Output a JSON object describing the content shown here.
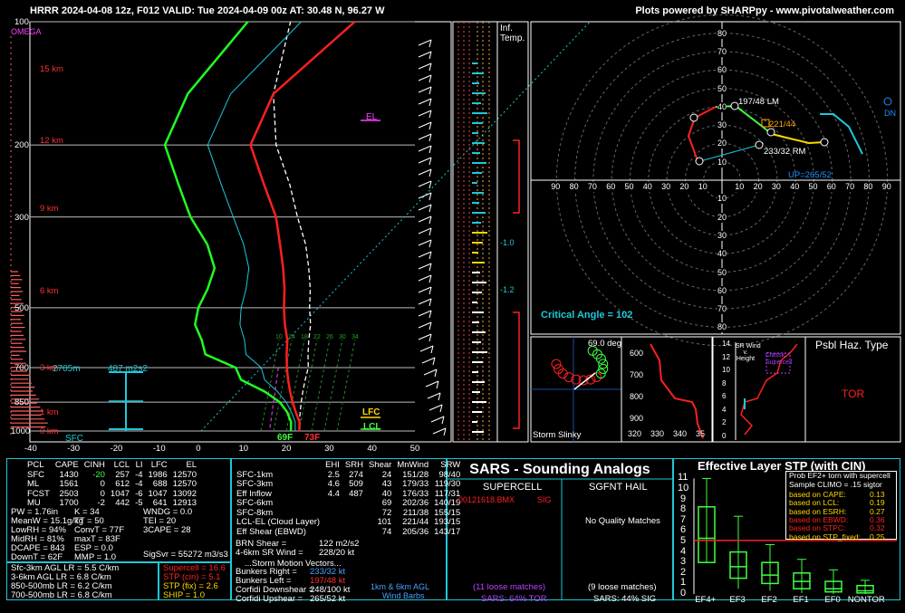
{
  "header": {
    "title": "HRRR 2024-04-08 12z, F012  VALID: Tue 2024-04-09 00z  AT: 30.48 N, 96.27 W",
    "credit": "Plots powered by SHARPpy - www.pivotalweather.com"
  },
  "skewt": {
    "omega_label": "OMEGA",
    "pressure_ticks": [
      "100",
      "200",
      "300",
      "500",
      "700",
      "850",
      "1000"
    ],
    "temp_ticks": [
      "-40",
      "-30",
      "-20",
      "-10",
      "0",
      "10",
      "20",
      "30",
      "40",
      "50"
    ],
    "height_labels": [
      "15 km",
      "12 km",
      "9 km",
      "6 km",
      "3 km",
      "1 km",
      "0 km"
    ],
    "el_label": "EL",
    "lfc_label": "LFC",
    "lcl_label": "LCL",
    "helicity_depth": "2705m",
    "helicity_value": "487 m2s2",
    "sfc_label": "SFC",
    "sfc_dewpoint": "69F",
    "sfc_temp": "73F",
    "mixing_ratio_labels": [
      "10",
      "14",
      "18",
      "22",
      "26",
      "30",
      "34"
    ]
  },
  "inflow_panel": {
    "title_line1": "Inf.",
    "title_line2": "Temp.",
    "markers": [
      "-1.0",
      "-1.2"
    ]
  },
  "hodograph": {
    "y_ticks": [
      "80",
      "70",
      "60",
      "50",
      "40",
      "30",
      "20",
      "10"
    ],
    "x_ticks": [
      "90",
      "80",
      "70",
      "60",
      "50",
      "40",
      "30",
      "20",
      "10",
      "10",
      "20",
      "30",
      "40",
      "50",
      "60",
      "70",
      "80",
      "90"
    ],
    "lower_ticks": [
      "10",
      "20",
      "30",
      "40",
      "50",
      "60",
      "70",
      "80"
    ],
    "lm_label": "197/48 LM",
    "mean_label": "221/44",
    "rm_label": "233/32 RM",
    "up_label": "UP=265/52",
    "dn_label": "DN",
    "critical_angle": "Critical Angle = 102"
  },
  "storm_slinky": {
    "title": "Storm Slinky",
    "angle": "69.0 deg"
  },
  "theta_panel": {
    "y_ticks": [
      "600",
      "700",
      "800",
      "900"
    ],
    "x_ticks": [
      "320",
      "330",
      "340",
      "35"
    ]
  },
  "sr_wind_panel": {
    "title_lines": [
      "SR Wind",
      "v.",
      "Height"
    ],
    "classic_label": "Classic Supercell",
    "y_ticks": [
      "14",
      "12",
      "10",
      "8",
      "6",
      "4",
      "2",
      "0"
    ]
  },
  "hazard": {
    "title": "Psbl Haz. Type",
    "value": "TOR"
  },
  "parcels": {
    "headers": [
      "PCL",
      "CAPE",
      "CINH",
      "LCL",
      "LI",
      "LFC",
      "EL"
    ],
    "rows": [
      [
        "SFC",
        "1430",
        "-20",
        "257",
        "-4",
        "1986",
        "12570"
      ],
      [
        "ML",
        "1561",
        "0",
        "612",
        "-4",
        "688",
        "12570"
      ],
      [
        "FCST",
        "2503",
        "0",
        "1047",
        "-6",
        "1047",
        "13092"
      ],
      [
        "MU",
        "1700",
        "-2",
        "442",
        "-5",
        "641",
        "12913"
      ]
    ]
  },
  "indices": {
    "col1": [
      "PW = 1.76in",
      "MeanW = 15.1g/kg",
      "LowRH = 94%",
      "MidRH = 81%",
      "DCAPE = 843",
      "DownT = 62F"
    ],
    "col2": [
      "K = 34",
      "TT = 50",
      "ConvT = 77F",
      "maxT = 83F",
      "ESP = 0.0",
      "MMP = 1.0"
    ],
    "col3": [
      "WNDG = 0.0",
      "TEI = 20",
      "3CAPE = 28",
      "",
      "",
      ""
    ],
    "sigsvr": "SigSvr = 55272 m3/s3"
  },
  "lapse": [
    "Sfc-3km AGL LR = 5.5 C/km",
    "3-6km AGL LR = 6.8 C/km",
    "850-500mb LR = 6.2 C/km",
    "700-500mb LR = 6.8 C/km"
  ],
  "composite": [
    {
      "label": "Supercell = 16.6",
      "color": "#ff2020"
    },
    {
      "label": "STP (cin) = 5.1",
      "color": "#ff2020"
    },
    {
      "label": "STP (fix) = 2.6",
      "color": "#ffd700"
    },
    {
      "label": "SHIP = 1.0",
      "color": "#ffd700"
    }
  ],
  "kinematics": {
    "headers": [
      "",
      "EHI",
      "SRH",
      "Shear",
      "MnWind",
      "SRW"
    ],
    "rows": [
      [
        "SFC-1km",
        "2.5",
        "274",
        "24",
        "151/28",
        "98/40"
      ],
      [
        "SFC-3km",
        "4.6",
        "509",
        "43",
        "179/33",
        "119/30"
      ],
      [
        "Eff Inflow",
        "4.4",
        "487",
        "40",
        "176/33",
        "117/31"
      ],
      [
        "",
        "",
        "",
        "",
        "",
        ""
      ],
      [
        "SFC-6km",
        "",
        "",
        "69",
        "202/36",
        "140/19"
      ],
      [
        "SFC-8km",
        "",
        "",
        "72",
        "211/38",
        "155/15"
      ],
      [
        "LCL-EL (Cloud Layer)",
        "",
        "",
        "101",
        "221/44",
        "193/15"
      ],
      [
        "Eff Shear (EBWD)",
        "",
        "",
        "74",
        "205/36",
        "143/17"
      ]
    ],
    "brn_shear": "BRN Shear =",
    "brn_value": "122 m2/s2",
    "srw46": "4-6km SR Wind =",
    "srw46_value": "228/20 kt",
    "motion_title": "...Storm Motion Vectors...",
    "motion": [
      {
        "label": "Bunkers Right =",
        "value": "233/32 kt",
        "color": "#4aa0ff"
      },
      {
        "label": "Bunkers Left =",
        "value": "197/48 kt",
        "color": "#ff3030"
      },
      {
        "label": "Corfidi Downshear =",
        "value": "248/100 kt",
        "color": "#ffffff"
      },
      {
        "label": "Corfidi Upshear =",
        "value": "265/52 kt",
        "color": "#ffffff"
      }
    ],
    "wind_barbs_line1": "1km & 6km AGL",
    "wind_barbs_line2": "Wind Barbs"
  },
  "sars": {
    "title": "SARS - Sounding Analogs",
    "supercell_title": "SUPERCELL",
    "hail_title": "SGFNT HAIL",
    "match_id": "00121618.BMX",
    "match_type": "SIG",
    "no_matches": "No Quality Matches",
    "supercell_loose": "(11 loose matches)",
    "supercell_pct": "SARS: 64% TOR",
    "hail_loose": "(9 loose matches)",
    "hail_pct": "SARS: 44% SIG"
  },
  "stp": {
    "title": "Effective Layer STP (with CIN)",
    "y_ticks": [
      "11",
      "10",
      "9",
      "8",
      "7",
      "6",
      "5",
      "4",
      "3",
      "2",
      "1",
      "0"
    ],
    "categories": [
      "EF4+",
      "EF3",
      "EF2",
      "EF1",
      "EF0",
      "NONTOR"
    ],
    "legend_title_1": "Prob EF2+ torn with supercell",
    "legend_title_2": "Sample CLIMO = .15 sigtor",
    "legend_rows": [
      {
        "label": "based on CAPE:",
        "value": "0.13",
        "color": "#ffd700"
      },
      {
        "label": "based on LCL:",
        "value": "0.19",
        "color": "#ffd700"
      },
      {
        "label": "based on ESRH:",
        "value": "0.27",
        "color": "#ffd700"
      },
      {
        "label": "based on EBWD:",
        "value": "0.36",
        "color": "#ff2020"
      },
      {
        "label": "based on STPC:",
        "value": "0.32",
        "color": "#ff2020"
      },
      {
        "label": "based on STP_fixed:",
        "value": "0.25",
        "color": "#ffd700"
      }
    ]
  },
  "chart_data": {
    "type": "line",
    "title": "",
    "xlabel": "",
    "ylabel": "",
    "xlim": [
      -40,
      50
    ],
    "ylim": [
      1000,
      100
    ],
    "y_scale": "log",
    "series": [
      {
        "p": [
          1000,
          950,
          900,
          850,
          800,
          750,
          700,
          650,
          600,
          550,
          500,
          450,
          400,
          350,
          300,
          250,
          200,
          150,
          100
        ],
        "values": [
          23,
          21,
          18,
          15,
          12,
          9,
          6,
          3,
          0,
          -4,
          -8,
          -12,
          -17,
          -23,
          -30,
          -40,
          -52,
          -58,
          -55
        ]
      },
      {
        "p": [
          1000,
          950,
          900,
          850,
          800,
          750,
          700,
          650,
          600,
          550,
          500,
          450,
          400,
          350,
          300,
          250,
          200,
          150,
          100
        ],
        "values": [
          21,
          19,
          16,
          12,
          6,
          -2,
          -6,
          -16,
          -20,
          -25,
          -28,
          -30,
          -33,
          -40,
          -50,
          -60,
          -72,
          -78,
          -80
        ]
      }
    ],
    "stp_boxes": [
      {
        "cat": "EF4+",
        "lo": 3,
        "q1": 3,
        "med": 5.3,
        "q3": 8.3,
        "hi": 11
      },
      {
        "cat": "EF3",
        "lo": 0.5,
        "q1": 1.5,
        "med": 2.6,
        "q3": 4,
        "hi": 7.4
      },
      {
        "cat": "EF2",
        "lo": 0.3,
        "q1": 1,
        "med": 1.8,
        "q3": 3,
        "hi": 4.7
      },
      {
        "cat": "EF1",
        "lo": 0.1,
        "q1": 0.5,
        "med": 1.2,
        "q3": 2,
        "hi": 3.3
      },
      {
        "cat": "EF0",
        "lo": 0,
        "q1": 0.2,
        "med": 0.5,
        "q3": 1.2,
        "hi": 2.3
      },
      {
        "cat": "NONTOR",
        "lo": 0,
        "q1": 0.1,
        "med": 0.3,
        "q3": 0.8,
        "hi": 1.3
      }
    ],
    "stp_current": 5.1
  }
}
